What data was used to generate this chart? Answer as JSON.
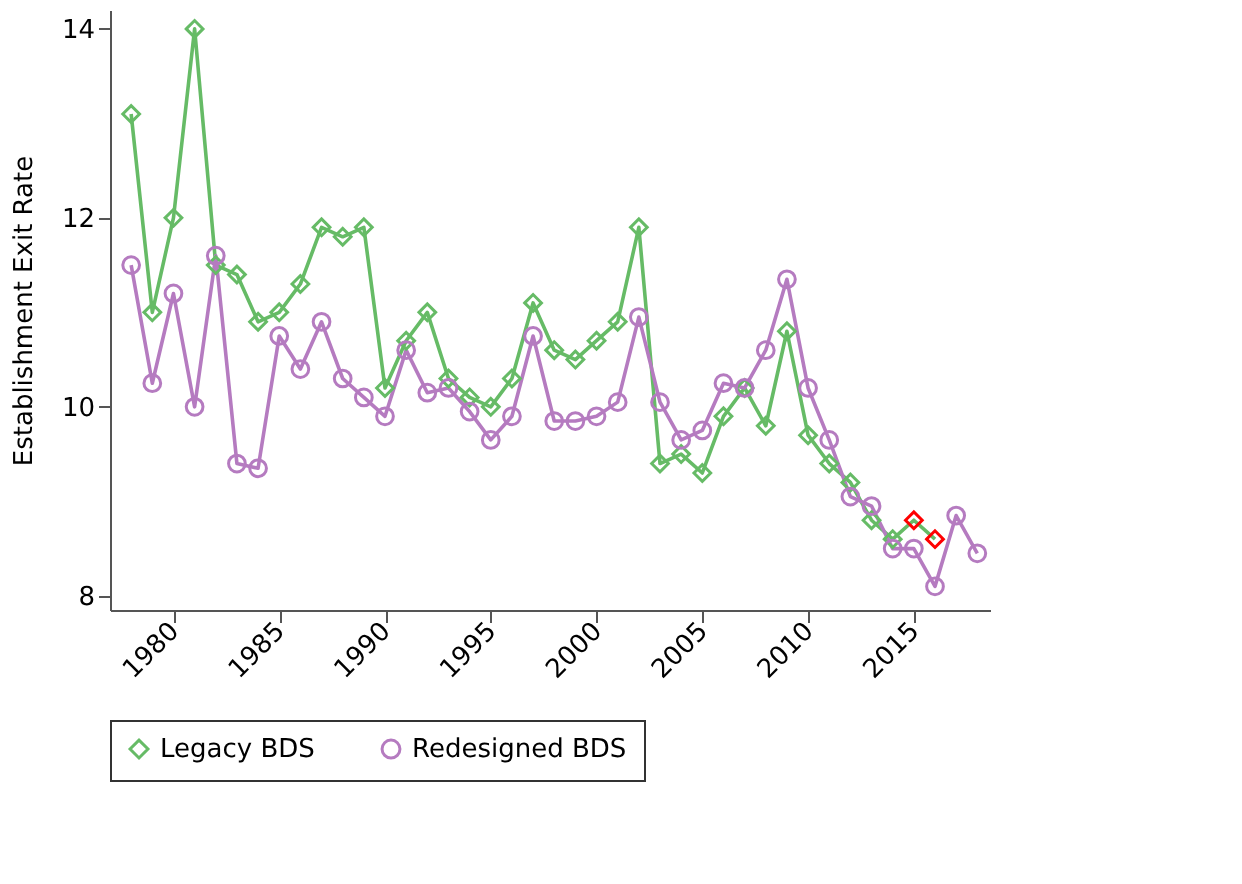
{
  "chart_data": {
    "type": "line",
    "ylabel": "Establishment Exit Rate",
    "x": [
      1978,
      1979,
      1980,
      1981,
      1982,
      1983,
      1984,
      1985,
      1986,
      1987,
      1988,
      1989,
      1990,
      1991,
      1992,
      1993,
      1994,
      1995,
      1996,
      1997,
      1998,
      1999,
      2000,
      2001,
      2002,
      2003,
      2004,
      2005,
      2006,
      2007,
      2008,
      2009,
      2010,
      2011,
      2012,
      2013,
      2014,
      2015,
      2016,
      2017,
      2018
    ],
    "series": [
      {
        "name": "Legacy BDS",
        "color": "#66bb66",
        "marker": "diamond",
        "x": [
          1978,
          1979,
          1980,
          1981,
          1982,
          1983,
          1984,
          1985,
          1986,
          1987,
          1988,
          1989,
          1990,
          1991,
          1992,
          1993,
          1994,
          1995,
          1996,
          1997,
          1998,
          1999,
          2000,
          2001,
          2002,
          2003,
          2004,
          2005,
          2006,
          2007,
          2008,
          2009,
          2010,
          2011,
          2012,
          2013,
          2014,
          2015,
          2016
        ],
        "values": [
          13.1,
          11.0,
          12.0,
          14.0,
          11.5,
          11.4,
          10.9,
          11.0,
          11.3,
          11.9,
          11.8,
          11.9,
          10.2,
          10.7,
          11.0,
          10.3,
          10.1,
          10.0,
          10.3,
          11.1,
          10.6,
          10.5,
          10.7,
          10.9,
          11.9,
          9.4,
          9.5,
          9.3,
          9.9,
          10.2,
          9.8,
          10.8,
          9.7,
          9.4,
          9.2,
          8.8,
          8.6,
          8.8,
          8.6
        ],
        "colors": [
          "#66bb66",
          "#66bb66",
          "#66bb66",
          "#66bb66",
          "#66bb66",
          "#66bb66",
          "#66bb66",
          "#66bb66",
          "#66bb66",
          "#66bb66",
          "#66bb66",
          "#66bb66",
          "#66bb66",
          "#66bb66",
          "#66bb66",
          "#66bb66",
          "#66bb66",
          "#66bb66",
          "#66bb66",
          "#66bb66",
          "#66bb66",
          "#66bb66",
          "#66bb66",
          "#66bb66",
          "#66bb66",
          "#66bb66",
          "#66bb66",
          "#66bb66",
          "#66bb66",
          "#66bb66",
          "#66bb66",
          "#66bb66",
          "#66bb66",
          "#66bb66",
          "#66bb66",
          "#66bb66",
          "#66bb66",
          "#ff0000",
          "#ff0000"
        ]
      },
      {
        "name": "Redesigned BDS",
        "color": "#b57bc0",
        "marker": "circle",
        "values": [
          11.5,
          10.25,
          11.2,
          10.0,
          11.6,
          9.4,
          9.35,
          10.75,
          10.4,
          10.9,
          10.3,
          10.1,
          9.9,
          10.6,
          10.15,
          10.2,
          9.95,
          9.65,
          9.9,
          10.75,
          9.85,
          9.85,
          9.9,
          10.05,
          10.95,
          10.05,
          9.65,
          9.75,
          10.25,
          10.2,
          10.6,
          11.35,
          10.2,
          9.65,
          9.05,
          8.95,
          8.5,
          8.5,
          8.1,
          8.85,
          8.45
        ]
      }
    ],
    "xlim": [
      1977,
      2018.6
    ],
    "xticks": [
      1980,
      1985,
      1990,
      1995,
      2000,
      2005,
      2010,
      2015
    ],
    "ylim": [
      7.85,
      14.2
    ],
    "yticks": [
      8,
      10,
      12,
      14
    ],
    "grid": false,
    "legend": "bottom",
    "line_style": "solid"
  }
}
